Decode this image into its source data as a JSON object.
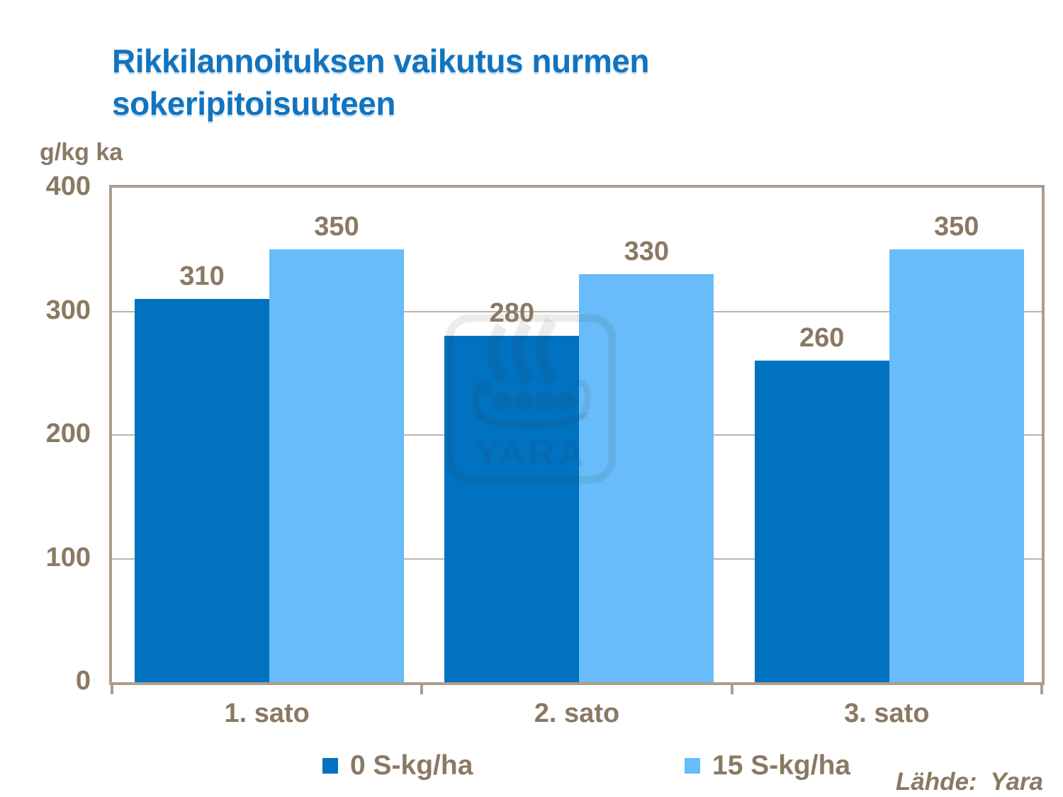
{
  "title": "Rikkilannoituksen vaikutus nurmen sokeripitoisuuteen",
  "source": "Lähde:  Yara",
  "watermark_text": "YARA",
  "colors": {
    "title_blue": "#1273BE",
    "label_brown": "#8A7963",
    "axis_frame_tan": "#AB9D8E",
    "gridline_tan": "#BFB2A5",
    "series1_dark_blue": "#0072C0",
    "series2_light_blue": "#67BCF9"
  },
  "chart_data": {
    "type": "bar",
    "title": "Rikkilannoituksen vaikutus nurmen sokeripitoisuuteen",
    "xlabel": "",
    "ylabel": "g/kg ka",
    "categories": [
      "1. sato",
      "2. sato",
      "3. sato"
    ],
    "series": [
      {
        "name": "0 S-kg/ha",
        "color": "#0072C0",
        "values": [
          310,
          280,
          260
        ]
      },
      {
        "name": "15 S-kg/ha",
        "color": "#67BCF9",
        "values": [
          350,
          330,
          350
        ]
      }
    ],
    "ylim": [
      0,
      400
    ],
    "yticks": [
      0,
      100,
      200,
      300,
      400
    ],
    "grid": "horizontal",
    "legend_position": "bottom",
    "data_labels": true
  }
}
